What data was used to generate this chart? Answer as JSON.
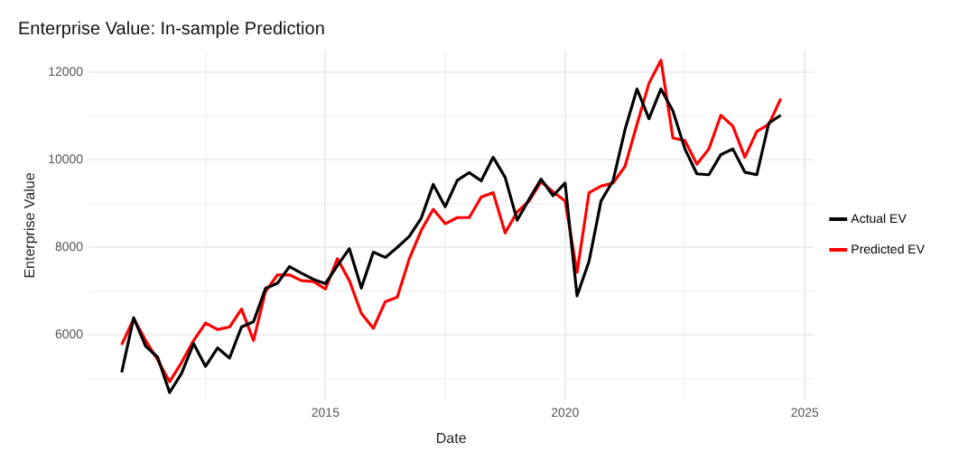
{
  "chart_data": {
    "type": "line",
    "title": "Enterprise Value: In-sample Prediction",
    "xlabel": "Date",
    "ylabel": "Enterprise Value",
    "x": [
      2010.75,
      2011,
      2011.25,
      2011.5,
      2011.75,
      2012,
      2012.25,
      2012.5,
      2012.75,
      2013,
      2013.25,
      2013.5,
      2013.75,
      2014,
      2014.25,
      2014.5,
      2014.75,
      2015,
      2015.25,
      2015.5,
      2015.75,
      2016,
      2016.25,
      2016.5,
      2016.75,
      2017,
      2017.25,
      2017.5,
      2017.75,
      2018,
      2018.25,
      2018.5,
      2018.75,
      2019,
      2019.25,
      2019.5,
      2019.75,
      2020,
      2020.25,
      2020.5,
      2020.75,
      2021,
      2021.25,
      2021.5,
      2021.75,
      2022,
      2022.25,
      2022.5,
      2022.75,
      2023,
      2023.25,
      2023.5,
      2023.75,
      2024,
      2024.25,
      2024.5
    ],
    "series": [
      {
        "name": "Actual EV",
        "color": "#000000",
        "values": [
          5140,
          6390,
          5740,
          5490,
          4680,
          5120,
          5800,
          5280,
          5700,
          5470,
          6180,
          6300,
          7060,
          7180,
          7560,
          7410,
          7270,
          7170,
          7580,
          7970,
          7070,
          7890,
          7770,
          8000,
          8250,
          8670,
          9440,
          8930,
          9530,
          9710,
          9520,
          10060,
          9600,
          8620,
          9100,
          9560,
          9180,
          9470,
          6890,
          7680,
          9060,
          9520,
          10690,
          11620,
          10940,
          11620,
          11120,
          10250,
          9680,
          9660,
          10120,
          10250,
          9720,
          9660,
          10840,
          11020
        ]
      },
      {
        "name": "Predicted EV",
        "color": "#ff0000",
        "values": [
          5770,
          6370,
          5870,
          5430,
          4930,
          5370,
          5870,
          6270,
          6120,
          6180,
          6590,
          5870,
          6990,
          7370,
          7370,
          7240,
          7220,
          7050,
          7740,
          7240,
          6490,
          6150,
          6760,
          6860,
          7740,
          8390,
          8870,
          8540,
          8680,
          8680,
          9150,
          9250,
          8330,
          8810,
          9060,
          9500,
          9270,
          9060,
          7430,
          9250,
          9400,
          9470,
          9850,
          10810,
          11750,
          12280,
          10500,
          10440,
          9900,
          10250,
          11020,
          10770,
          10060,
          10650,
          10810,
          11400
        ]
      }
    ],
    "xlim": [
      2010.06,
      2025.19
    ],
    "xticks": [
      {
        "value": 2012.5,
        "label": null
      },
      2015,
      {
        "value": 2017.5,
        "label": null
      },
      2020,
      {
        "value": 2022.5,
        "label": null
      },
      2025
    ],
    "ylim": [
      4500,
      12500
    ],
    "yticks": [
      {
        "value": 5000,
        "label": null
      },
      6000,
      {
        "value": 7000,
        "label": null
      },
      8000,
      {
        "value": 9000,
        "label": null
      },
      10000,
      {
        "value": 11000,
        "label": null
      },
      12000
    ],
    "grid": true,
    "legend": "right",
    "marker": "none",
    "line_style": "solid"
  }
}
